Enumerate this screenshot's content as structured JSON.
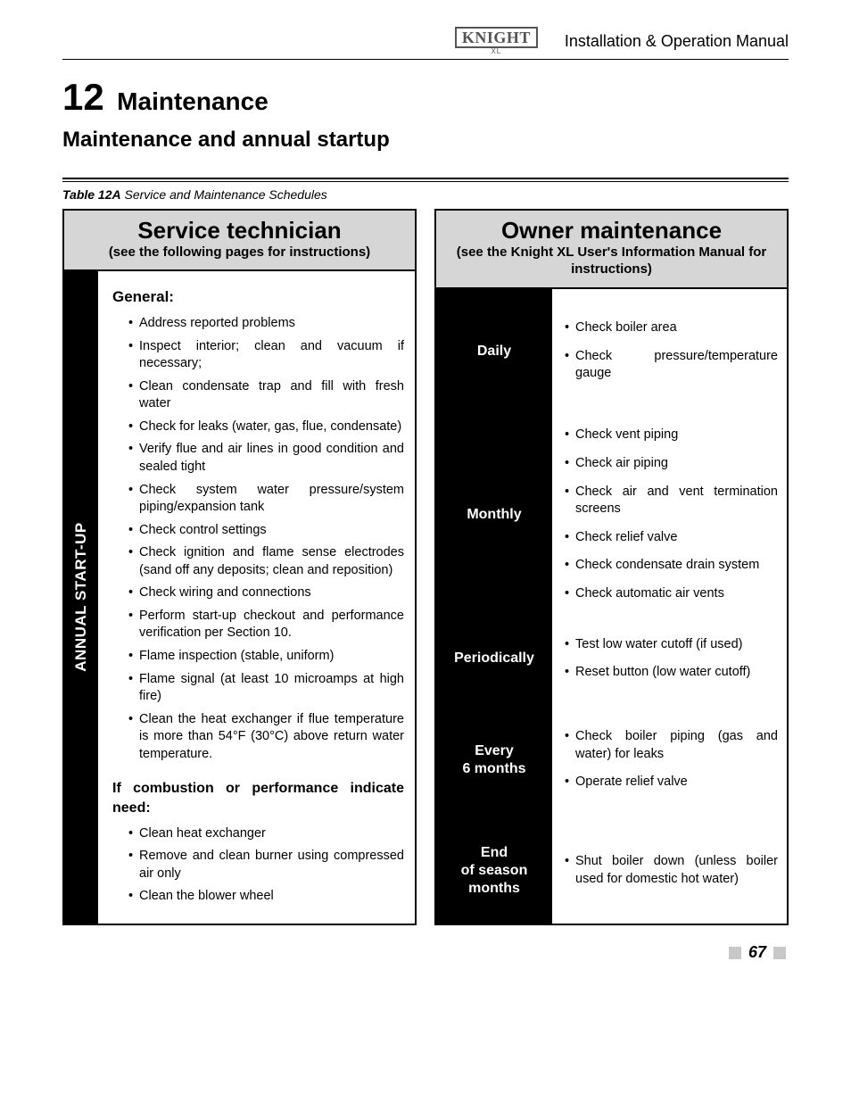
{
  "header": {
    "logo_text": "KNIGHT",
    "logo_sub": "XL",
    "doc_title": "Installation & Operation Manual"
  },
  "section": {
    "number": "12",
    "title": "Maintenance",
    "subtitle": "Maintenance and annual startup"
  },
  "table_caption": {
    "label": "Table 12A",
    "desc": "Service and Maintenance Schedules"
  },
  "left": {
    "title": "Service technician",
    "subtitle": "(see the following pages for instructions)",
    "vband": "ANNUAL START-UP",
    "h1": "General:",
    "items1": [
      "Address reported problems",
      "Inspect interior; clean and vacuum if necessary;",
      "Clean condensate trap and fill with fresh water",
      "Check for leaks (water, gas, flue, condensate)",
      "Verify flue and air lines in good condition and sealed tight",
      "Check system water pressure/system piping/expansion tank",
      "Check control settings",
      "Check ignition and flame sense electrodes (sand off any deposits; clean and reposition)",
      "Check wiring and connections",
      "Perform start-up checkout and performance verification per Section 10.",
      "Flame inspection (stable, uniform)",
      "Flame signal (at least 10 microamps at high fire)",
      "Clean the heat exchanger if flue temperature is more than 54°F (30°C) above return water temperature."
    ],
    "h2": "If combustion or performance indicate need:",
    "items2": [
      "Clean heat exchanger",
      "Remove and clean burner using compressed air only",
      "Clean the blower wheel"
    ]
  },
  "right": {
    "title": "Owner maintenance",
    "subtitle": "(see the Knight XL User's Information Manual for instructions)",
    "rows": [
      {
        "label": "Daily",
        "items": [
          "Check boiler area",
          "Check pressure/temperature gauge"
        ]
      },
      {
        "label": "Monthly",
        "items": [
          "Check vent piping",
          "Check air piping",
          "Check air and vent termination screens",
          "Check relief valve",
          "Check condensate drain system",
          "Check automatic air vents"
        ]
      },
      {
        "label": "Periodically",
        "items": [
          "Test low water cutoff (if used)",
          "Reset button (low water cutoff)"
        ]
      },
      {
        "label": "Every\n6 months",
        "items": [
          "Check boiler piping (gas and water) for leaks",
          "Operate relief valve"
        ]
      },
      {
        "label": "End\nof season\nmonths",
        "items": [
          "Shut boiler down (unless boiler used for domestic hot water)"
        ]
      }
    ]
  },
  "footer": {
    "page": "67"
  },
  "row_flex": [
    1.3,
    2.1,
    0.9,
    1.2,
    1.1
  ]
}
